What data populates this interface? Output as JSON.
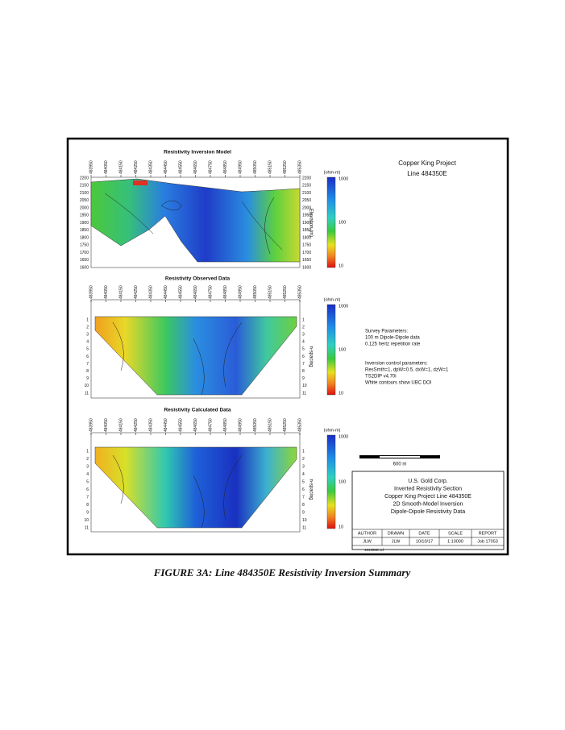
{
  "figure": {
    "panels": [
      {
        "title": "Resistivity Inversion Model",
        "eastings": [
          "483950",
          "484050",
          "484150",
          "484250",
          "484350",
          "484450",
          "484550",
          "484650",
          "484750",
          "484850",
          "484950",
          "485050",
          "485150",
          "485250",
          "485350"
        ],
        "left_ticks": [
          "2200",
          "2150",
          "2100",
          "2050",
          "2000",
          "1950",
          "1900",
          "1850",
          "1800",
          "1750",
          "1700",
          "1650",
          "1600"
        ],
        "right_ticks": [
          "2200",
          "2150",
          "2100",
          "2050",
          "2000",
          "1950",
          "1900",
          "1850",
          "1800",
          "1750",
          "1700",
          "1650",
          "1600"
        ],
        "right_axis_label": "Elevation (m)",
        "scale_unit": "(ohm-m)",
        "scale_labels": [
          "1000",
          "100",
          "10"
        ]
      },
      {
        "title": "Resistivity Observed Data",
        "eastings": [
          "483950",
          "484050",
          "484150",
          "484250",
          "484350",
          "484450",
          "484550",
          "484650",
          "484750",
          "484850",
          "484950",
          "485050",
          "485150",
          "485250",
          "485350"
        ],
        "left_ticks": [
          "1",
          "2",
          "3",
          "4",
          "5",
          "6",
          "7",
          "8",
          "9",
          "10",
          "11"
        ],
        "right_ticks": [
          "1",
          "2",
          "3",
          "4",
          "5",
          "6",
          "7",
          "8",
          "9",
          "10",
          "11"
        ],
        "right_axis_label": "n-spacing",
        "scale_unit": "(ohm-m)",
        "scale_labels": [
          "1000",
          "100",
          "10"
        ]
      },
      {
        "title": "Resistivity Calculated Data",
        "eastings": [
          "483950",
          "484050",
          "484150",
          "484250",
          "484350",
          "484450",
          "484550",
          "484650",
          "484750",
          "484850",
          "484950",
          "485050",
          "485150",
          "485250",
          "485350"
        ],
        "left_ticks": [
          "1",
          "2",
          "3",
          "4",
          "5",
          "6",
          "7",
          "8",
          "9",
          "10",
          "11"
        ],
        "right_ticks": [
          "1",
          "2",
          "3",
          "4",
          "5",
          "6",
          "7",
          "8",
          "9",
          "10",
          "11"
        ],
        "right_axis_label": "n-spacing",
        "scale_unit": "(ohm-m)",
        "scale_labels": [
          "1000",
          "100",
          "10"
        ]
      }
    ],
    "project": {
      "name": "Copper King Project",
      "line": "Line 484350E"
    },
    "parameters": [
      "Survey Parameters:",
      "100 m Dipole-Dipole data",
      "0.125 hertz repetition rate",
      "Inversion control parameters:",
      "ResSmth=1, dpW=0.5, dxW=1, dzW=1",
      "TS2DIP v4.70i",
      "White contours show UBC DOI"
    ],
    "scale_bar": "600 m",
    "title_block": {
      "lines": [
        "U.S. Gold Corp.",
        "Inverted Resistivity Section",
        "Copper King Project Line 484350E",
        "2D Smooth-Model Inversion",
        "Dipole-Dipole Resistivity Data"
      ],
      "headers": [
        "AUTHOR",
        "DRAWN",
        "DATE",
        "SCALE",
        "REPORT"
      ],
      "values": [
        "JLW",
        "JLW",
        "10/10/17",
        "1:10000",
        "Job 17053"
      ],
      "file": "484350E.srf"
    }
  },
  "caption": "FIGURE 3A: Line 484350E Resistivity Inversion Summary"
}
